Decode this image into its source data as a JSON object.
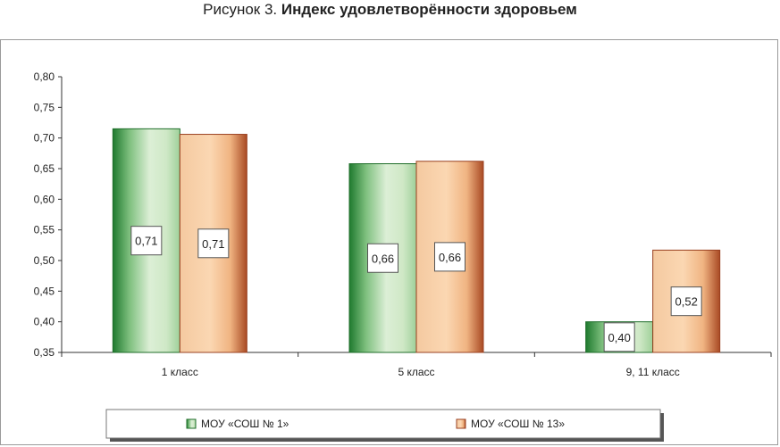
{
  "caption": {
    "prefix": "Рисунок 3.",
    "title": "Индекс удовлетворённости здоровьем"
  },
  "chart_data": {
    "type": "bar",
    "categories": [
      "1 класс",
      "5 класс",
      "9, 11 класс"
    ],
    "series": [
      {
        "name": "МОУ «СОШ № 1»",
        "values": [
          0.715,
          0.658,
          0.4
        ],
        "labels": [
          "0,71",
          "0,66",
          "0,40"
        ],
        "color": "#2e8b3a"
      },
      {
        "name": "МОУ «СОШ № 13»",
        "values": [
          0.706,
          0.662,
          0.517
        ],
        "labels": [
          "0,71",
          "0,66",
          "0,52"
        ],
        "color": "#b5522a"
      }
    ],
    "ylim": [
      0.35,
      0.8
    ],
    "yticks": [
      "0,35",
      "0,40",
      "0,45",
      "0,50",
      "0,55",
      "0,60",
      "0,65",
      "0,70",
      "0,75",
      "0,80"
    ],
    "grid": false,
    "legend": "bottom"
  }
}
